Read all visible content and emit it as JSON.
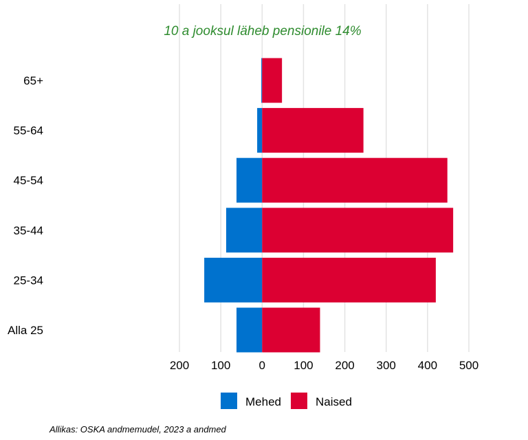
{
  "chart_data": {
    "type": "bar",
    "orientation": "horizontal",
    "layout": "population-pyramid",
    "title": "",
    "annotation": "10 a jooksul läheb pensionile 14%",
    "annotation_color": "#2e8b2e",
    "categories": [
      "65+",
      "55-64",
      "45-54",
      "35-44",
      "25-34",
      "Alla 25"
    ],
    "series": [
      {
        "name": "Mehed",
        "color": "#0072ce",
        "direction": "left",
        "values": [
          2,
          12,
          62,
          87,
          140,
          62
        ]
      },
      {
        "name": "Naised",
        "color": "#dc0032",
        "direction": "right",
        "values": [
          48,
          245,
          448,
          462,
          420,
          140
        ]
      }
    ],
    "xlim": [
      -200,
      500
    ],
    "x_ticks": [
      -200,
      -100,
      0,
      100,
      200,
      300,
      400,
      500
    ],
    "x_tick_labels": [
      "200",
      "100",
      "0",
      "100",
      "200",
      "300",
      "400",
      "500"
    ],
    "grid": "vertical",
    "legend": "bottom",
    "source": "Allikas: OSKA andmemudel, 2023 a andmed"
  }
}
